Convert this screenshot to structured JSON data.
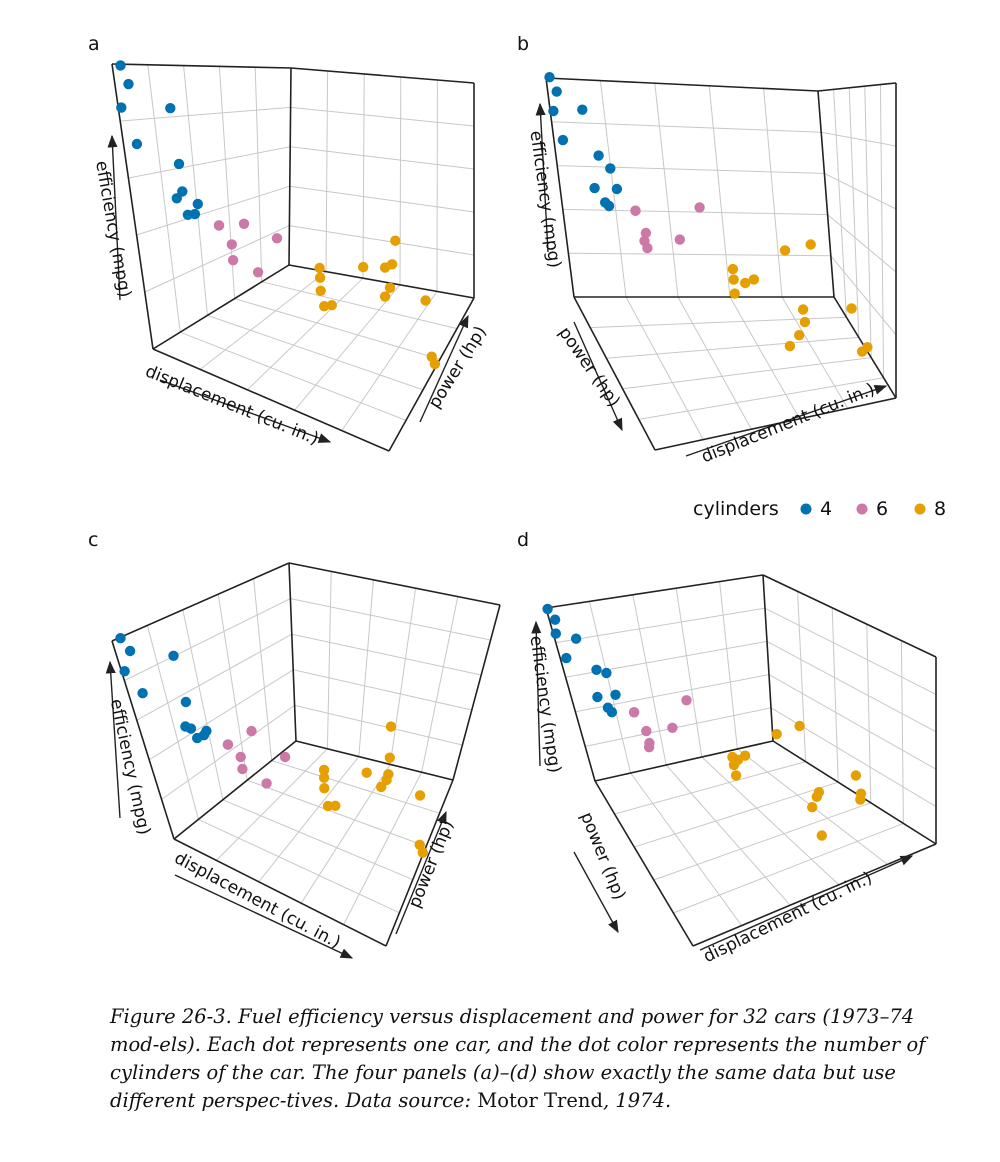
{
  "chart_data": {
    "type": "scatter",
    "layout": "3d-scatter, 2x2 panels",
    "axes": {
      "x": "displacement (cu. in.)",
      "y": "power (hp)",
      "z": "efficiency (mpg)"
    },
    "legend": {
      "title": "cylinders",
      "placement": "right, between rows",
      "entries": [
        {
          "label": "4",
          "color": "#0072B2"
        },
        {
          "label": "6",
          "color": "#CC79A7"
        },
        {
          "label": "8",
          "color": "#E69F00"
        }
      ]
    },
    "ranges": {
      "displacement": [
        71,
        472
      ],
      "power": [
        52,
        335
      ],
      "efficiency": [
        10,
        34
      ]
    },
    "grid": true,
    "panels": [
      {
        "letter": "a",
        "view": "front, displacement axis left-to-right"
      },
      {
        "letter": "b",
        "view": "rotated, power axis toward viewer"
      },
      {
        "letter": "c",
        "view": "front, elevated"
      },
      {
        "letter": "d",
        "view": "rotated, elevated"
      }
    ],
    "series": [
      {
        "name": "4",
        "color": "#0072B2",
        "points": [
          {
            "displacement": 108.0,
            "power": 93,
            "efficiency": 22.8
          },
          {
            "displacement": 146.7,
            "power": 62,
            "efficiency": 24.4
          },
          {
            "displacement": 140.8,
            "power": 95,
            "efficiency": 22.8
          },
          {
            "displacement": 78.7,
            "power": 66,
            "efficiency": 32.4
          },
          {
            "displacement": 75.7,
            "power": 52,
            "efficiency": 30.4
          },
          {
            "displacement": 71.1,
            "power": 65,
            "efficiency": 33.9
          },
          {
            "displacement": 120.1,
            "power": 97,
            "efficiency": 21.5
          },
          {
            "displacement": 79.0,
            "power": 66,
            "efficiency": 27.3
          },
          {
            "displacement": 120.3,
            "power": 91,
            "efficiency": 26.0
          },
          {
            "displacement": 95.1,
            "power": 113,
            "efficiency": 30.4
          },
          {
            "displacement": 121.0,
            "power": 109,
            "efficiency": 21.4
          }
        ]
      },
      {
        "name": "6",
        "color": "#CC79A7",
        "points": [
          {
            "displacement": 160.0,
            "power": 110,
            "efficiency": 21.0
          },
          {
            "displacement": 160.0,
            "power": 110,
            "efficiency": 21.0
          },
          {
            "displacement": 258.0,
            "power": 110,
            "efficiency": 21.4
          },
          {
            "displacement": 225.0,
            "power": 105,
            "efficiency": 18.1
          },
          {
            "displacement": 167.6,
            "power": 123,
            "efficiency": 19.2
          },
          {
            "displacement": 167.6,
            "power": 123,
            "efficiency": 17.8
          },
          {
            "displacement": 145.0,
            "power": 175,
            "efficiency": 19.7
          }
        ]
      },
      {
        "name": "8",
        "color": "#E69F00",
        "points": [
          {
            "displacement": 360.0,
            "power": 175,
            "efficiency": 18.7
          },
          {
            "displacement": 360.0,
            "power": 245,
            "efficiency": 14.3
          },
          {
            "displacement": 275.8,
            "power": 180,
            "efficiency": 16.4
          },
          {
            "displacement": 275.8,
            "power": 180,
            "efficiency": 17.3
          },
          {
            "displacement": 275.8,
            "power": 180,
            "efficiency": 15.2
          },
          {
            "displacement": 472.0,
            "power": 205,
            "efficiency": 10.4
          },
          {
            "displacement": 460.0,
            "power": 215,
            "efficiency": 10.4
          },
          {
            "displacement": 440.0,
            "power": 230,
            "efficiency": 14.7
          },
          {
            "displacement": 318.0,
            "power": 150,
            "efficiency": 15.5
          },
          {
            "displacement": 304.0,
            "power": 150,
            "efficiency": 15.2
          },
          {
            "displacement": 350.0,
            "power": 245,
            "efficiency": 13.3
          },
          {
            "displacement": 400.0,
            "power": 175,
            "efficiency": 19.2
          },
          {
            "displacement": 351.0,
            "power": 264,
            "efficiency": 15.8
          },
          {
            "displacement": 301.0,
            "power": 335,
            "efficiency": 15.0
          }
        ]
      }
    ]
  },
  "caption": {
    "lead": "Figure 26-3. Fuel efficiency versus displacement and power for 32 cars (1973–74 mod-els). Each dot represents one car, and the dot color represents the number of cylinders of the car. The four panels (a)–(d) show exactly the same data but use different perspec-tives. Data source: ",
    "source": "Motor Trend",
    "tail": ", 1974."
  }
}
